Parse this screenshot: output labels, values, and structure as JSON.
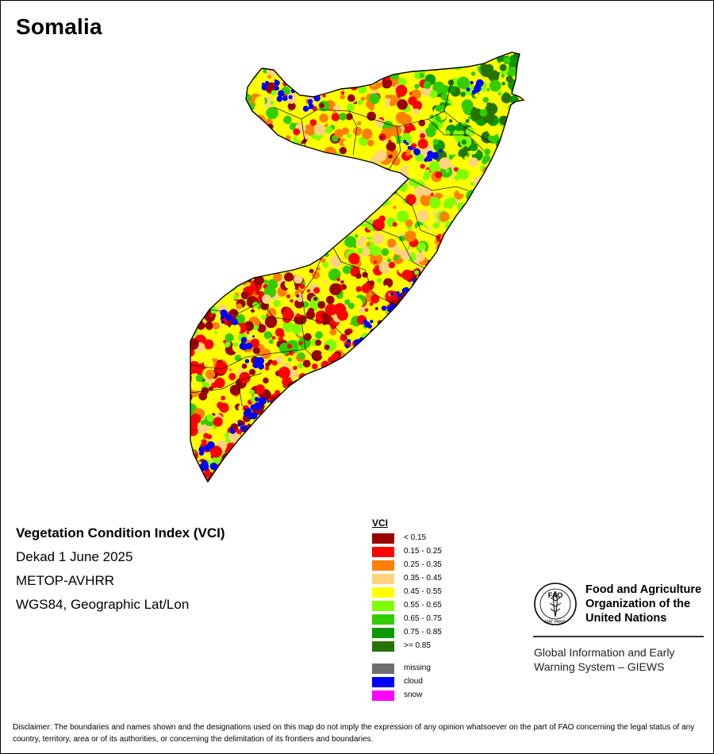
{
  "map": {
    "title": "Somalia",
    "product": {
      "name": "Vegetation Condition Index (VCI)",
      "period": "Dekad 1 June 2025",
      "sensor": "METOP-AVHRR",
      "projection": "WGS84, Geographic Lat/Lon"
    },
    "legend": {
      "title": "VCI",
      "classes": [
        {
          "label": "< 0.15",
          "color": "#990000"
        },
        {
          "label": "0.15 - 0.25",
          "color": "#ff0000"
        },
        {
          "label": "0.25 - 0.35",
          "color": "#ff8000"
        },
        {
          "label": "0.35 - 0.45",
          "color": "#ffd37f"
        },
        {
          "label": "0.45 - 0.55",
          "color": "#ffff00"
        },
        {
          "label": "0.55 - 0.65",
          "color": "#80ff00"
        },
        {
          "label": "0.65 - 0.75",
          "color": "#33cc00"
        },
        {
          "label": "0.75 - 0.85",
          "color": "#0d9900"
        },
        {
          "label": ">= 0.85",
          "color": "#267300"
        }
      ],
      "extra": [
        {
          "label": "missing",
          "color": "#6e6e6e"
        },
        {
          "label": "cloud",
          "color": "#0000ff"
        },
        {
          "label": "snow",
          "color": "#ff00ff"
        }
      ]
    }
  },
  "organization": {
    "emblem": "fao-emblem-icon",
    "emblem_text": "FAO",
    "emblem_motto": "FIAT PANIS",
    "name_lines": [
      "Food and Agriculture",
      "Organization of the",
      "United Nations"
    ],
    "unit_lines": [
      "Global Information and Early",
      "Warning System – GIEWS"
    ]
  },
  "disclaimer": "Disclaimer: The boundaries and names shown and the designations used on this map do not imply the expression of any opinion whatsoever on the part of FAO concerning the legal status of any country, territory, area or of its authorities, or concerning the delimitation of its frontiers and boundaries."
}
